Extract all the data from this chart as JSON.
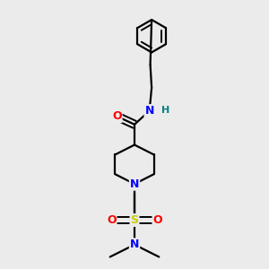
{
  "background_color": "#ebebeb",
  "bond_color": "#000000",
  "atom_colors": {
    "O": "#ff0000",
    "N": "#0000ff",
    "S": "#cccc00",
    "H": "#008080",
    "C": "#000000"
  },
  "figsize": [
    3.0,
    3.0
  ],
  "dpi": 100
}
